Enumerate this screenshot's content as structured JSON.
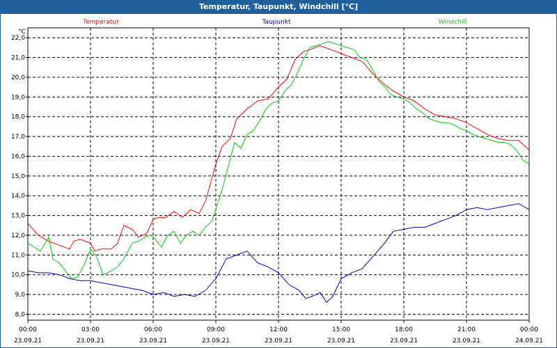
{
  "window": {
    "title": "Temperatur, Taupunkt, Windchill [°C]"
  },
  "chart_data": {
    "type": "line",
    "title": "Temperatur, Taupunkt, Windchill [°C]",
    "ylabel": "°C",
    "ylim": [
      7.7,
      22.5
    ],
    "yticks": [
      "8,0",
      "9,0",
      "10,0",
      "11,0",
      "12,0",
      "13,0",
      "14,0",
      "15,0",
      "16,0",
      "17,0",
      "18,0",
      "19,0",
      "20,0",
      "21,0",
      "22,0"
    ],
    "xlim": [
      0,
      24
    ],
    "xticks": [
      {
        "time": "00:00",
        "date": "23.09.21"
      },
      {
        "time": "03:00",
        "date": "23.09.21"
      },
      {
        "time": "06:00",
        "date": "23.09.21"
      },
      {
        "time": "09:00",
        "date": "23.09.21"
      },
      {
        "time": "12:00",
        "date": "23.09.21"
      },
      {
        "time": "15:00",
        "date": "23.09.21"
      },
      {
        "time": "18:00",
        "date": "23.09.21"
      },
      {
        "time": "21:00",
        "date": "23.09.21"
      },
      {
        "time": "00:00",
        "date": "24.09.21"
      }
    ],
    "grid": true,
    "series": [
      {
        "name": "Temperatur",
        "color": "#ff0000",
        "x": [
          0,
          0.5,
          1,
          1.5,
          2,
          2.2,
          2.5,
          3,
          3.2,
          3.5,
          4,
          4.3,
          4.6,
          5,
          5.3,
          5.7,
          6,
          6.3,
          6.6,
          7,
          7.4,
          7.8,
          8.2,
          8.5,
          9,
          9.3,
          9.7,
          10,
          10.5,
          11,
          11.5,
          12,
          12.4,
          12.8,
          13.2,
          13.5,
          14,
          14.5,
          15,
          15.5,
          16,
          16.5,
          17,
          17.5,
          18,
          18.5,
          19,
          19.5,
          20,
          20.5,
          21,
          21.5,
          22,
          22.5,
          23,
          23.5,
          24
        ],
        "values": [
          12.6,
          12.0,
          11.7,
          11.5,
          11.3,
          11.7,
          11.8,
          11.6,
          11.2,
          11.3,
          11.3,
          11.6,
          12.5,
          12.3,
          11.9,
          12.1,
          12.8,
          12.9,
          12.9,
          13.2,
          12.9,
          13.3,
          13.1,
          13.7,
          15.6,
          16.5,
          16.9,
          17.9,
          18.4,
          18.8,
          18.9,
          19.5,
          19.9,
          20.9,
          21.3,
          21.4,
          21.6,
          21.4,
          21.2,
          21.0,
          20.8,
          20.2,
          19.7,
          19.3,
          19.0,
          18.8,
          18.4,
          18.1,
          18.0,
          17.9,
          17.7,
          17.4,
          17.1,
          16.9,
          16.8,
          16.8,
          16.3
        ]
      },
      {
        "name": "Taupunkt",
        "color": "#0000cc",
        "x": [
          0,
          0.5,
          1,
          1.5,
          2,
          2.5,
          3,
          3.5,
          4,
          4.5,
          5,
          5.5,
          6,
          6.5,
          7,
          7.5,
          8,
          8.5,
          9,
          9.5,
          10,
          10.5,
          11,
          11.5,
          12,
          12.5,
          13,
          13.3,
          13.6,
          14,
          14.3,
          14.6,
          15,
          15.5,
          16,
          16.5,
          17,
          17.5,
          18,
          18.5,
          19,
          19.5,
          20,
          20.5,
          21,
          21.5,
          22,
          22.5,
          23,
          23.5,
          24
        ],
        "values": [
          10.2,
          10.1,
          10.1,
          10.0,
          9.8,
          9.7,
          9.7,
          9.6,
          9.5,
          9.4,
          9.3,
          9.2,
          9.0,
          9.1,
          8.9,
          9.0,
          8.9,
          9.2,
          9.8,
          10.8,
          11.0,
          11.2,
          10.6,
          10.4,
          10.1,
          9.5,
          9.2,
          8.8,
          8.9,
          9.1,
          8.6,
          8.9,
          9.8,
          10.1,
          10.3,
          10.9,
          11.5,
          12.2,
          12.3,
          12.4,
          12.4,
          12.6,
          12.8,
          13.0,
          13.3,
          13.4,
          13.3,
          13.4,
          13.5,
          13.6,
          13.3
        ]
      },
      {
        "name": "Windchill",
        "color": "#00cc00",
        "x": [
          0,
          0.3,
          0.6,
          1,
          1.2,
          1.5,
          1.8,
          2.1,
          2.4,
          2.7,
          3,
          3.3,
          3.6,
          4,
          4.3,
          4.6,
          5,
          5.3,
          5.6,
          5.9,
          6.1,
          6.4,
          6.7,
          7,
          7.3,
          7.6,
          7.9,
          8.2,
          8.5,
          8.8,
          9,
          9.3,
          9.6,
          9.9,
          10.2,
          10.5,
          10.8,
          11.1,
          11.4,
          11.7,
          12,
          12.3,
          12.6,
          12.9,
          13.2,
          13.5,
          13.8,
          14.1,
          14.4,
          14.7,
          15,
          15.3,
          15.6,
          15.9,
          16.2,
          16.5,
          16.8,
          17.1,
          17.4,
          17.7,
          18,
          18.3,
          18.6,
          18.9,
          19.2,
          19.5,
          19.8,
          20.1,
          20.4,
          20.7,
          21,
          21.3,
          21.6,
          21.9,
          22.2,
          22.5,
          22.8,
          23.1,
          23.4,
          23.7,
          24
        ],
        "values": [
          11.6,
          11.4,
          11.2,
          11.9,
          10.8,
          10.6,
          10.2,
          9.8,
          9.9,
          10.5,
          11.3,
          10.9,
          10.0,
          10.2,
          10.4,
          10.8,
          11.6,
          11.7,
          11.9,
          12.0,
          11.8,
          11.4,
          12.0,
          12.2,
          11.6,
          12.0,
          12.2,
          12.0,
          12.4,
          12.7,
          13.3,
          14.3,
          15.5,
          16.7,
          16.4,
          17.1,
          17.3,
          17.8,
          18.4,
          18.7,
          18.8,
          19.3,
          19.6,
          20.2,
          20.9,
          21.5,
          21.6,
          21.7,
          21.8,
          21.7,
          21.6,
          21.5,
          21.4,
          21.0,
          20.9,
          20.4,
          19.8,
          19.5,
          19.1,
          19.0,
          18.9,
          18.7,
          18.4,
          18.2,
          17.9,
          17.8,
          17.7,
          17.7,
          17.6,
          17.4,
          17.3,
          17.1,
          17.0,
          16.9,
          16.8,
          16.7,
          16.7,
          16.6,
          16.3,
          15.8,
          15.6
        ]
      }
    ]
  }
}
